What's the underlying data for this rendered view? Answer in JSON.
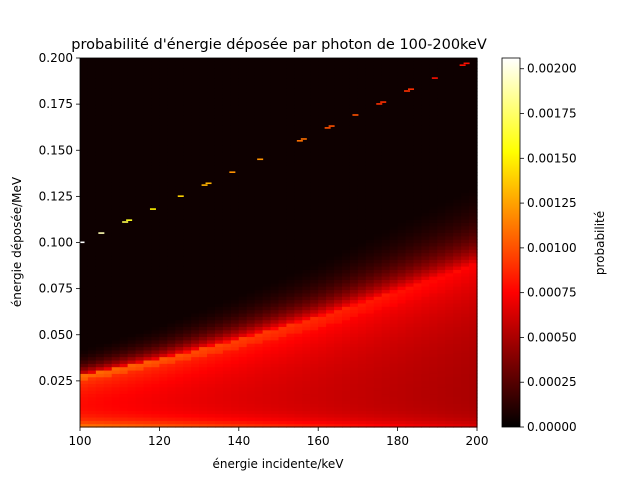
{
  "chart_data": {
    "type": "heatmap",
    "title": "probabilité d'énergie déposée par photon de 100-200keV",
    "xlabel": "énergie incidente/keV",
    "ylabel": "énergie déposée/MeV",
    "colorbar_label": "probabilité",
    "colormap": "hot",
    "xlim": [
      100,
      200
    ],
    "ylim": [
      0.0,
      0.2
    ],
    "clim": [
      0.0,
      0.00206
    ],
    "x_ticks": [
      {
        "value": 100,
        "label": "100"
      },
      {
        "value": 120,
        "label": "120"
      },
      {
        "value": 140,
        "label": "140"
      },
      {
        "value": 160,
        "label": "160"
      },
      {
        "value": 180,
        "label": "180"
      },
      {
        "value": 200,
        "label": "200"
      }
    ],
    "y_ticks": [
      {
        "value": 0.025,
        "label": "0.025"
      },
      {
        "value": 0.05,
        "label": "0.050"
      },
      {
        "value": 0.075,
        "label": "0.075"
      },
      {
        "value": 0.1,
        "label": "0.100"
      },
      {
        "value": 0.125,
        "label": "0.125"
      },
      {
        "value": 0.15,
        "label": "0.150"
      },
      {
        "value": 0.175,
        "label": "0.175"
      },
      {
        "value": 0.2,
        "label": "0.200"
      }
    ],
    "colorbar_ticks": [
      {
        "value": 0.0,
        "label": "0.00000"
      },
      {
        "value": 0.00025,
        "label": "0.00025"
      },
      {
        "value": 0.0005,
        "label": "0.00050"
      },
      {
        "value": 0.00075,
        "label": "0.00075"
      },
      {
        "value": 0.001,
        "label": "0.00100"
      },
      {
        "value": 0.00125,
        "label": "0.00125"
      },
      {
        "value": 0.0015,
        "label": "0.00150"
      },
      {
        "value": 0.00175,
        "label": "0.00175"
      },
      {
        "value": 0.002,
        "label": "0.00200"
      }
    ],
    "compton_edge": {
      "x": [
        100,
        120,
        140,
        160,
        180,
        200
      ],
      "y": [
        0.028,
        0.037,
        0.048,
        0.06,
        0.074,
        0.088
      ]
    },
    "photopeak": {
      "x": [
        100,
        105,
        111,
        112,
        118,
        125,
        131,
        132,
        138,
        145,
        155,
        156,
        162,
        163,
        169,
        175,
        176,
        182,
        183,
        189,
        196,
        197
      ],
      "y": [
        0.1,
        0.105,
        0.111,
        0.112,
        0.118,
        0.125,
        0.131,
        0.132,
        0.138,
        0.145,
        0.155,
        0.156,
        0.162,
        0.163,
        0.169,
        0.175,
        0.176,
        0.182,
        0.183,
        0.189,
        0.196,
        0.197
      ],
      "probability": [
        0.0021,
        0.0019,
        0.0017,
        0.0016,
        0.0015,
        0.0014,
        0.0013,
        0.0013,
        0.0012,
        0.0012,
        0.0011,
        0.0011,
        0.001,
        0.001,
        0.001,
        0.0009,
        0.0009,
        0.0009,
        0.0009,
        0.0008,
        0.0008,
        0.0008
      ]
    }
  }
}
